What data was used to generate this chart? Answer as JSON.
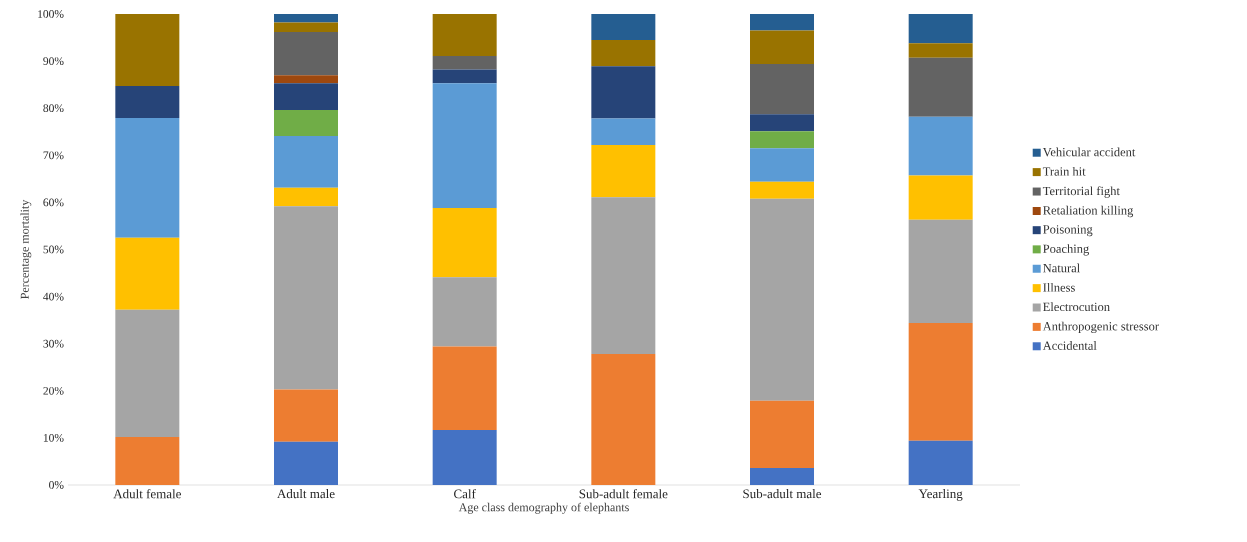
{
  "chart_data": {
    "type": "bar",
    "stacked": true,
    "xlabel": "Age class demography of elephants",
    "ylabel": "Percentage mortality",
    "categories": [
      "Adult female",
      "Adult male",
      "Calf",
      "Sub-adult female",
      "Sub-adult male",
      "Yearling"
    ],
    "ylim": [
      0,
      100
    ],
    "yticks": [
      {
        "value": 0,
        "label": "0%"
      },
      {
        "value": 10,
        "label": "10%"
      },
      {
        "value": 20,
        "label": "20%"
      },
      {
        "value": 30,
        "label": "30%"
      },
      {
        "value": 40,
        "label": "40%"
      },
      {
        "value": 50,
        "label": "50%"
      },
      {
        "value": 60,
        "label": "60%"
      },
      {
        "value": 70,
        "label": "70%"
      },
      {
        "value": 80,
        "label": "80%"
      },
      {
        "value": 90,
        "label": "90%"
      },
      {
        "value": 100,
        "label": "100%"
      }
    ],
    "grid": false,
    "legend": "right",
    "series": [
      {
        "name": "Accidental",
        "color": "#4472c4",
        "values": [
          0,
          9.2,
          11.7,
          0,
          3.6,
          9.4
        ]
      },
      {
        "name": "Anthropogenic stressor",
        "color": "#ed7d31",
        "values": [
          10.2,
          11.1,
          17.7,
          27.8,
          14.3,
          25.0
        ]
      },
      {
        "name": "Electrocution",
        "color": "#a5a5a5",
        "values": [
          27.0,
          38.9,
          14.7,
          33.3,
          42.9,
          21.9
        ]
      },
      {
        "name": "Illness",
        "color": "#ffc000",
        "values": [
          15.3,
          3.9,
          14.7,
          11.1,
          3.6,
          9.4
        ]
      },
      {
        "name": "Natural",
        "color": "#5b9bd5",
        "values": [
          25.4,
          11.0,
          26.5,
          5.6,
          7.1,
          12.5
        ]
      },
      {
        "name": "Poaching",
        "color": "#70ad47",
        "values": [
          0,
          5.5,
          0,
          0,
          3.6,
          0
        ]
      },
      {
        "name": "Poisoning",
        "color": "#264478",
        "values": [
          6.8,
          5.7,
          2.9,
          11.1,
          3.6,
          0
        ]
      },
      {
        "name": "Retaliation killing",
        "color": "#9e480e",
        "values": [
          0,
          1.7,
          0,
          0,
          0,
          0
        ]
      },
      {
        "name": "Territorial fight",
        "color": "#636363",
        "values": [
          0,
          9.2,
          2.9,
          0,
          10.7,
          12.5
        ]
      },
      {
        "name": "Train hit",
        "color": "#997300",
        "values": [
          15.3,
          2.0,
          8.9,
          5.6,
          7.1,
          3.1
        ]
      },
      {
        "name": "Vehicular accident",
        "color": "#255e91",
        "values": [
          0,
          1.8,
          0,
          5.5,
          3.5,
          6.2
        ]
      }
    ]
  }
}
